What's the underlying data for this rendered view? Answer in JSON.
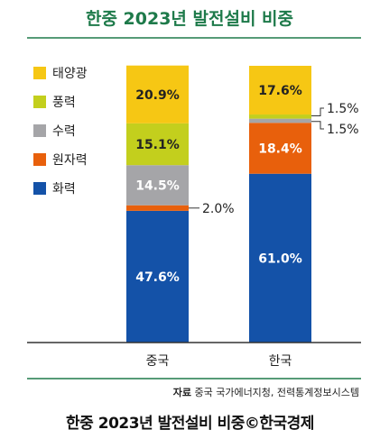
{
  "chart_data": {
    "type": "bar",
    "stacked": true,
    "title": "한중 2023년 발전설비 비중",
    "categories": [
      "중국",
      "한국"
    ],
    "ylim": [
      0,
      100
    ],
    "legend_position": "top-left",
    "series": [
      {
        "name": "화력",
        "color": "#1452a8",
        "values": [
          47.6,
          61.0
        ],
        "labels": [
          "47.6%",
          "61.0%"
        ]
      },
      {
        "name": "원자력",
        "color": "#e8600c",
        "values": [
          2.0,
          18.4
        ],
        "labels": [
          "2.0%",
          "18.4%"
        ]
      },
      {
        "name": "수력",
        "color": "#a5a5a8",
        "values": [
          14.5,
          1.5
        ],
        "labels": [
          "14.5%",
          "1.5%"
        ]
      },
      {
        "name": "풍력",
        "color": "#c3cf1d",
        "values": [
          15.1,
          1.5
        ],
        "labels": [
          "15.1%",
          "1.5%"
        ]
      },
      {
        "name": "태양광",
        "color": "#f6c714",
        "values": [
          20.9,
          17.6
        ],
        "labels": [
          "20.9%",
          "17.6%"
        ]
      }
    ],
    "legend_order": [
      "태양광",
      "풍력",
      "수력",
      "원자력",
      "화력"
    ]
  },
  "source": {
    "prefix": "자료",
    "text": "중국 국가에너지청, 전력통계정보시스템"
  },
  "caption": "한중 2023년 발전설비 비중©한국경제",
  "colors": {
    "title": "#1e7a4a",
    "rule": "#1e7a4a",
    "axis": "#333333"
  }
}
